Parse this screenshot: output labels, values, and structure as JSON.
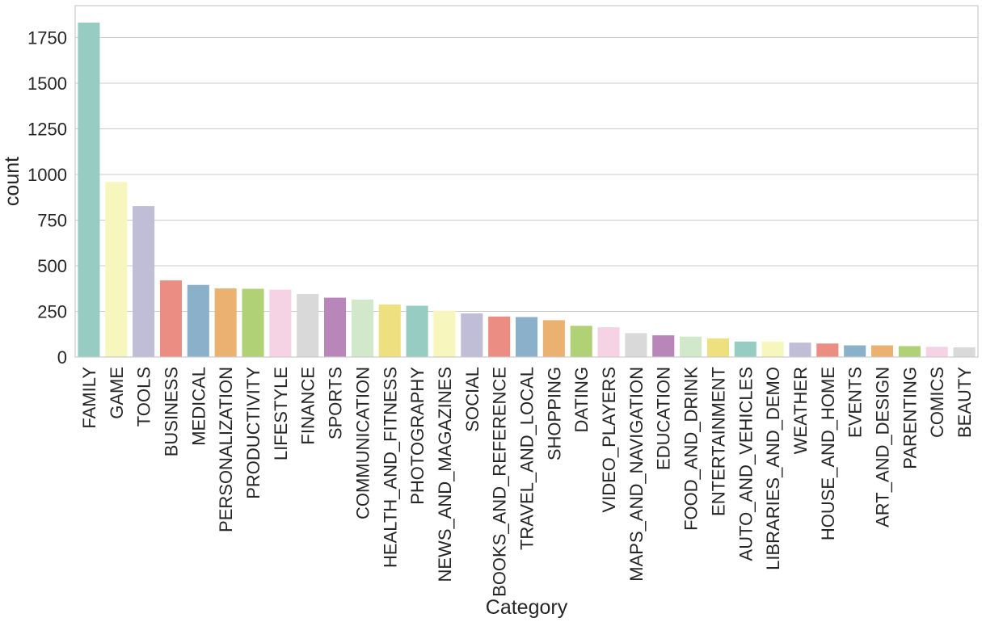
{
  "chart_data": {
    "type": "bar",
    "title": "",
    "xlabel": "Category",
    "ylabel": "count",
    "ylim": [
      0,
      1925
    ],
    "yticks": [
      0,
      250,
      500,
      750,
      1000,
      1250,
      1500,
      1750
    ],
    "grid": "y",
    "legend": "none",
    "categories": [
      "FAMILY",
      "GAME",
      "TOOLS",
      "BUSINESS",
      "MEDICAL",
      "PERSONALIZATION",
      "PRODUCTIVITY",
      "LIFESTYLE",
      "FINANCE",
      "SPORTS",
      "COMMUNICATION",
      "HEALTH_AND_FITNESS",
      "PHOTOGRAPHY",
      "NEWS_AND_MAGAZINES",
      "SOCIAL",
      "BOOKS_AND_REFERENCE",
      "TRAVEL_AND_LOCAL",
      "SHOPPING",
      "DATING",
      "VIDEO_PLAYERS",
      "MAPS_AND_NAVIGATION",
      "EDUCATION",
      "FOOD_AND_DRINK",
      "ENTERTAINMENT",
      "AUTO_AND_VEHICLES",
      "LIBRARIES_AND_DEMO",
      "WEATHER",
      "HOUSE_AND_HOME",
      "EVENTS",
      "ART_AND_DESIGN",
      "PARENTING",
      "COMICS",
      "BEAUTY"
    ],
    "values": [
      1832,
      959,
      827,
      420,
      395,
      376,
      374,
      369,
      345,
      325,
      315,
      288,
      281,
      254,
      239,
      222,
      219,
      202,
      171,
      163,
      131,
      119,
      112,
      102,
      85,
      84,
      79,
      74,
      64,
      64,
      60,
      56,
      53
    ],
    "colors": [
      "#8dd3c7",
      "#ffffb3",
      "#bebada",
      "#fb8072",
      "#80b1d3",
      "#fdb462",
      "#b3de69",
      "#fccde5",
      "#d9d9d9",
      "#bc80bd",
      "#ccebc5",
      "#ffed6f"
    ],
    "desaturated_colors": [
      "#97ccc2",
      "#f7f7bd",
      "#c0bdd7",
      "#eb8d82",
      "#8bb0ca",
      "#ebb171",
      "#b1d177",
      "#f5d3e4",
      "#d9d9d9",
      "#b886b8",
      "#d1e8cb",
      "#eedf7f"
    ]
  }
}
